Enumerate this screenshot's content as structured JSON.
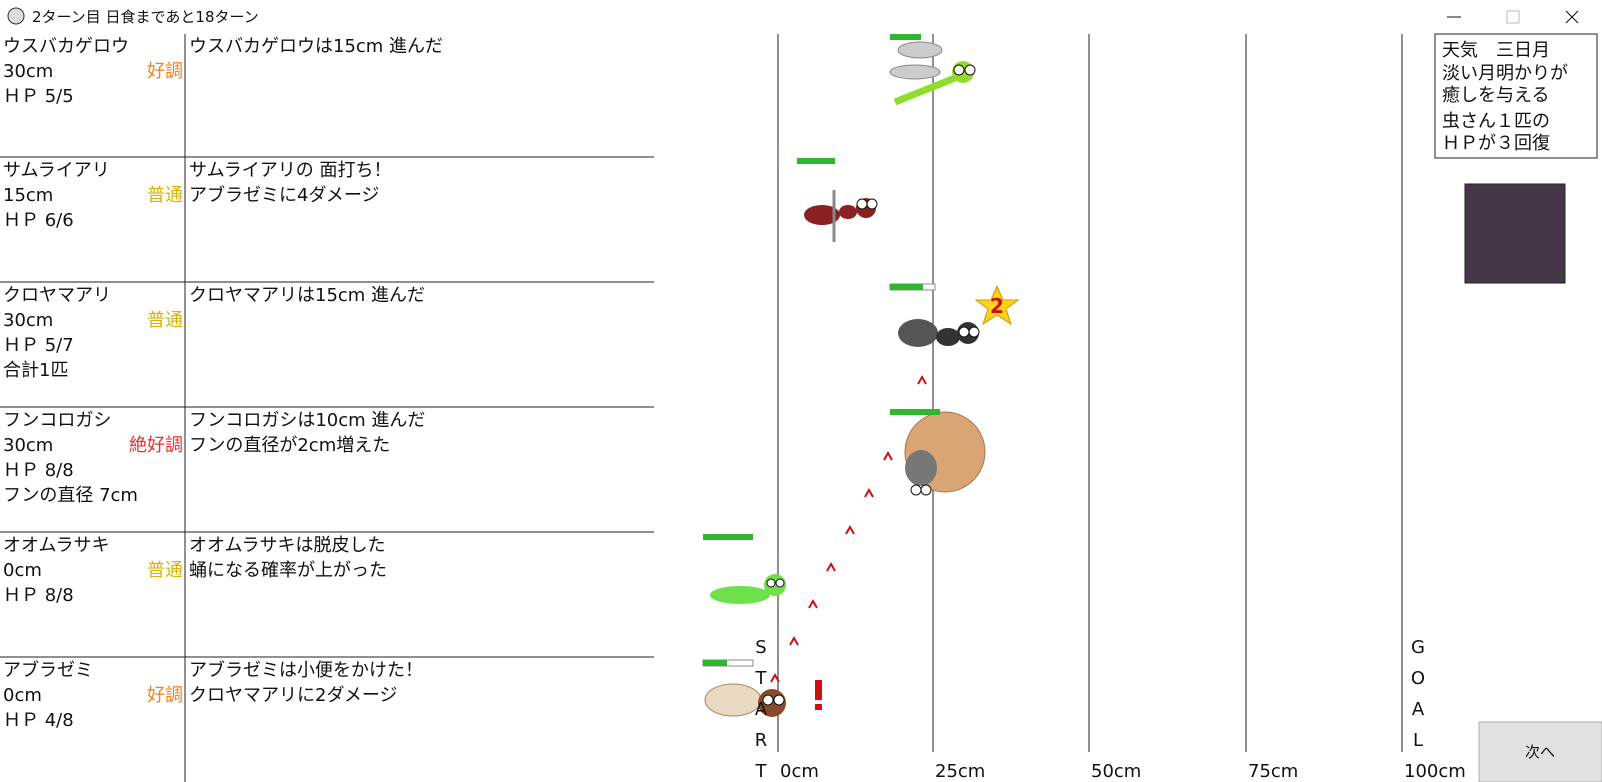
{
  "window": {
    "title": "2ターン目 日食まであと18ターン"
  },
  "insects": [
    {
      "name": "ウスバカゲロウ",
      "distance": "30cm",
      "condition": "好調",
      "condition_color": "#f07f1e",
      "hp": "ＨＰ 5/5",
      "messages": [
        "ウスバカゲロウは15cm 進んだ"
      ]
    },
    {
      "name": "サムライアリ",
      "distance": "15cm",
      "condition": "普通",
      "condition_color": "#d8b400",
      "hp": "ＨＰ 6/6",
      "messages": [
        "サムライアリの 面打ち！",
        "アブラゼミに4ダメージ"
      ]
    },
    {
      "name": "クロヤマアリ",
      "distance": "30cm",
      "condition": "普通",
      "condition_color": "#d8b400",
      "hp": "ＨＰ 5/7",
      "extra": "合計1匹",
      "messages": [
        "クロヤマアリは15cm 進んだ"
      ]
    },
    {
      "name": "フンコロガシ",
      "distance": "30cm",
      "condition": "絶好調",
      "condition_color": "#e8302a",
      "hp": "ＨＰ 8/8",
      "extra": "フンの直径 7cm",
      "messages": [
        "フンコロガシは10cm 進んだ",
        "フンの直径が2cm増えた"
      ]
    },
    {
      "name": "オオムラサキ",
      "distance": "0cm",
      "condition": "普通",
      "condition_color": "#d8b400",
      "hp": "ＨＰ 8/8",
      "messages": [
        "オオムラサキは脱皮した",
        "蛹になる確率が上がった"
      ]
    },
    {
      "name": "アブラゼミ",
      "distance": "0cm",
      "condition": "好調",
      "condition_color": "#f07f1e",
      "hp": "ＨＰ 4/8",
      "messages": [
        "アブラゼミは小便をかけた！",
        "クロヤマアリに2ダメージ"
      ]
    }
  ],
  "track": {
    "ticks": [
      "0cm",
      "25cm",
      "50cm",
      "75cm",
      "100cm"
    ],
    "start_letters": [
      "S",
      "T",
      "A",
      "R",
      "T"
    ],
    "goal_letters": [
      "G",
      "O",
      "A",
      "L"
    ]
  },
  "badge": "2",
  "weather": {
    "title": "天気　三日月",
    "lines": [
      "淡い月明かりが",
      "癒しを与える",
      "虫さん１匹の",
      "ＨＰが３回復"
    ]
  },
  "button": "次へ"
}
